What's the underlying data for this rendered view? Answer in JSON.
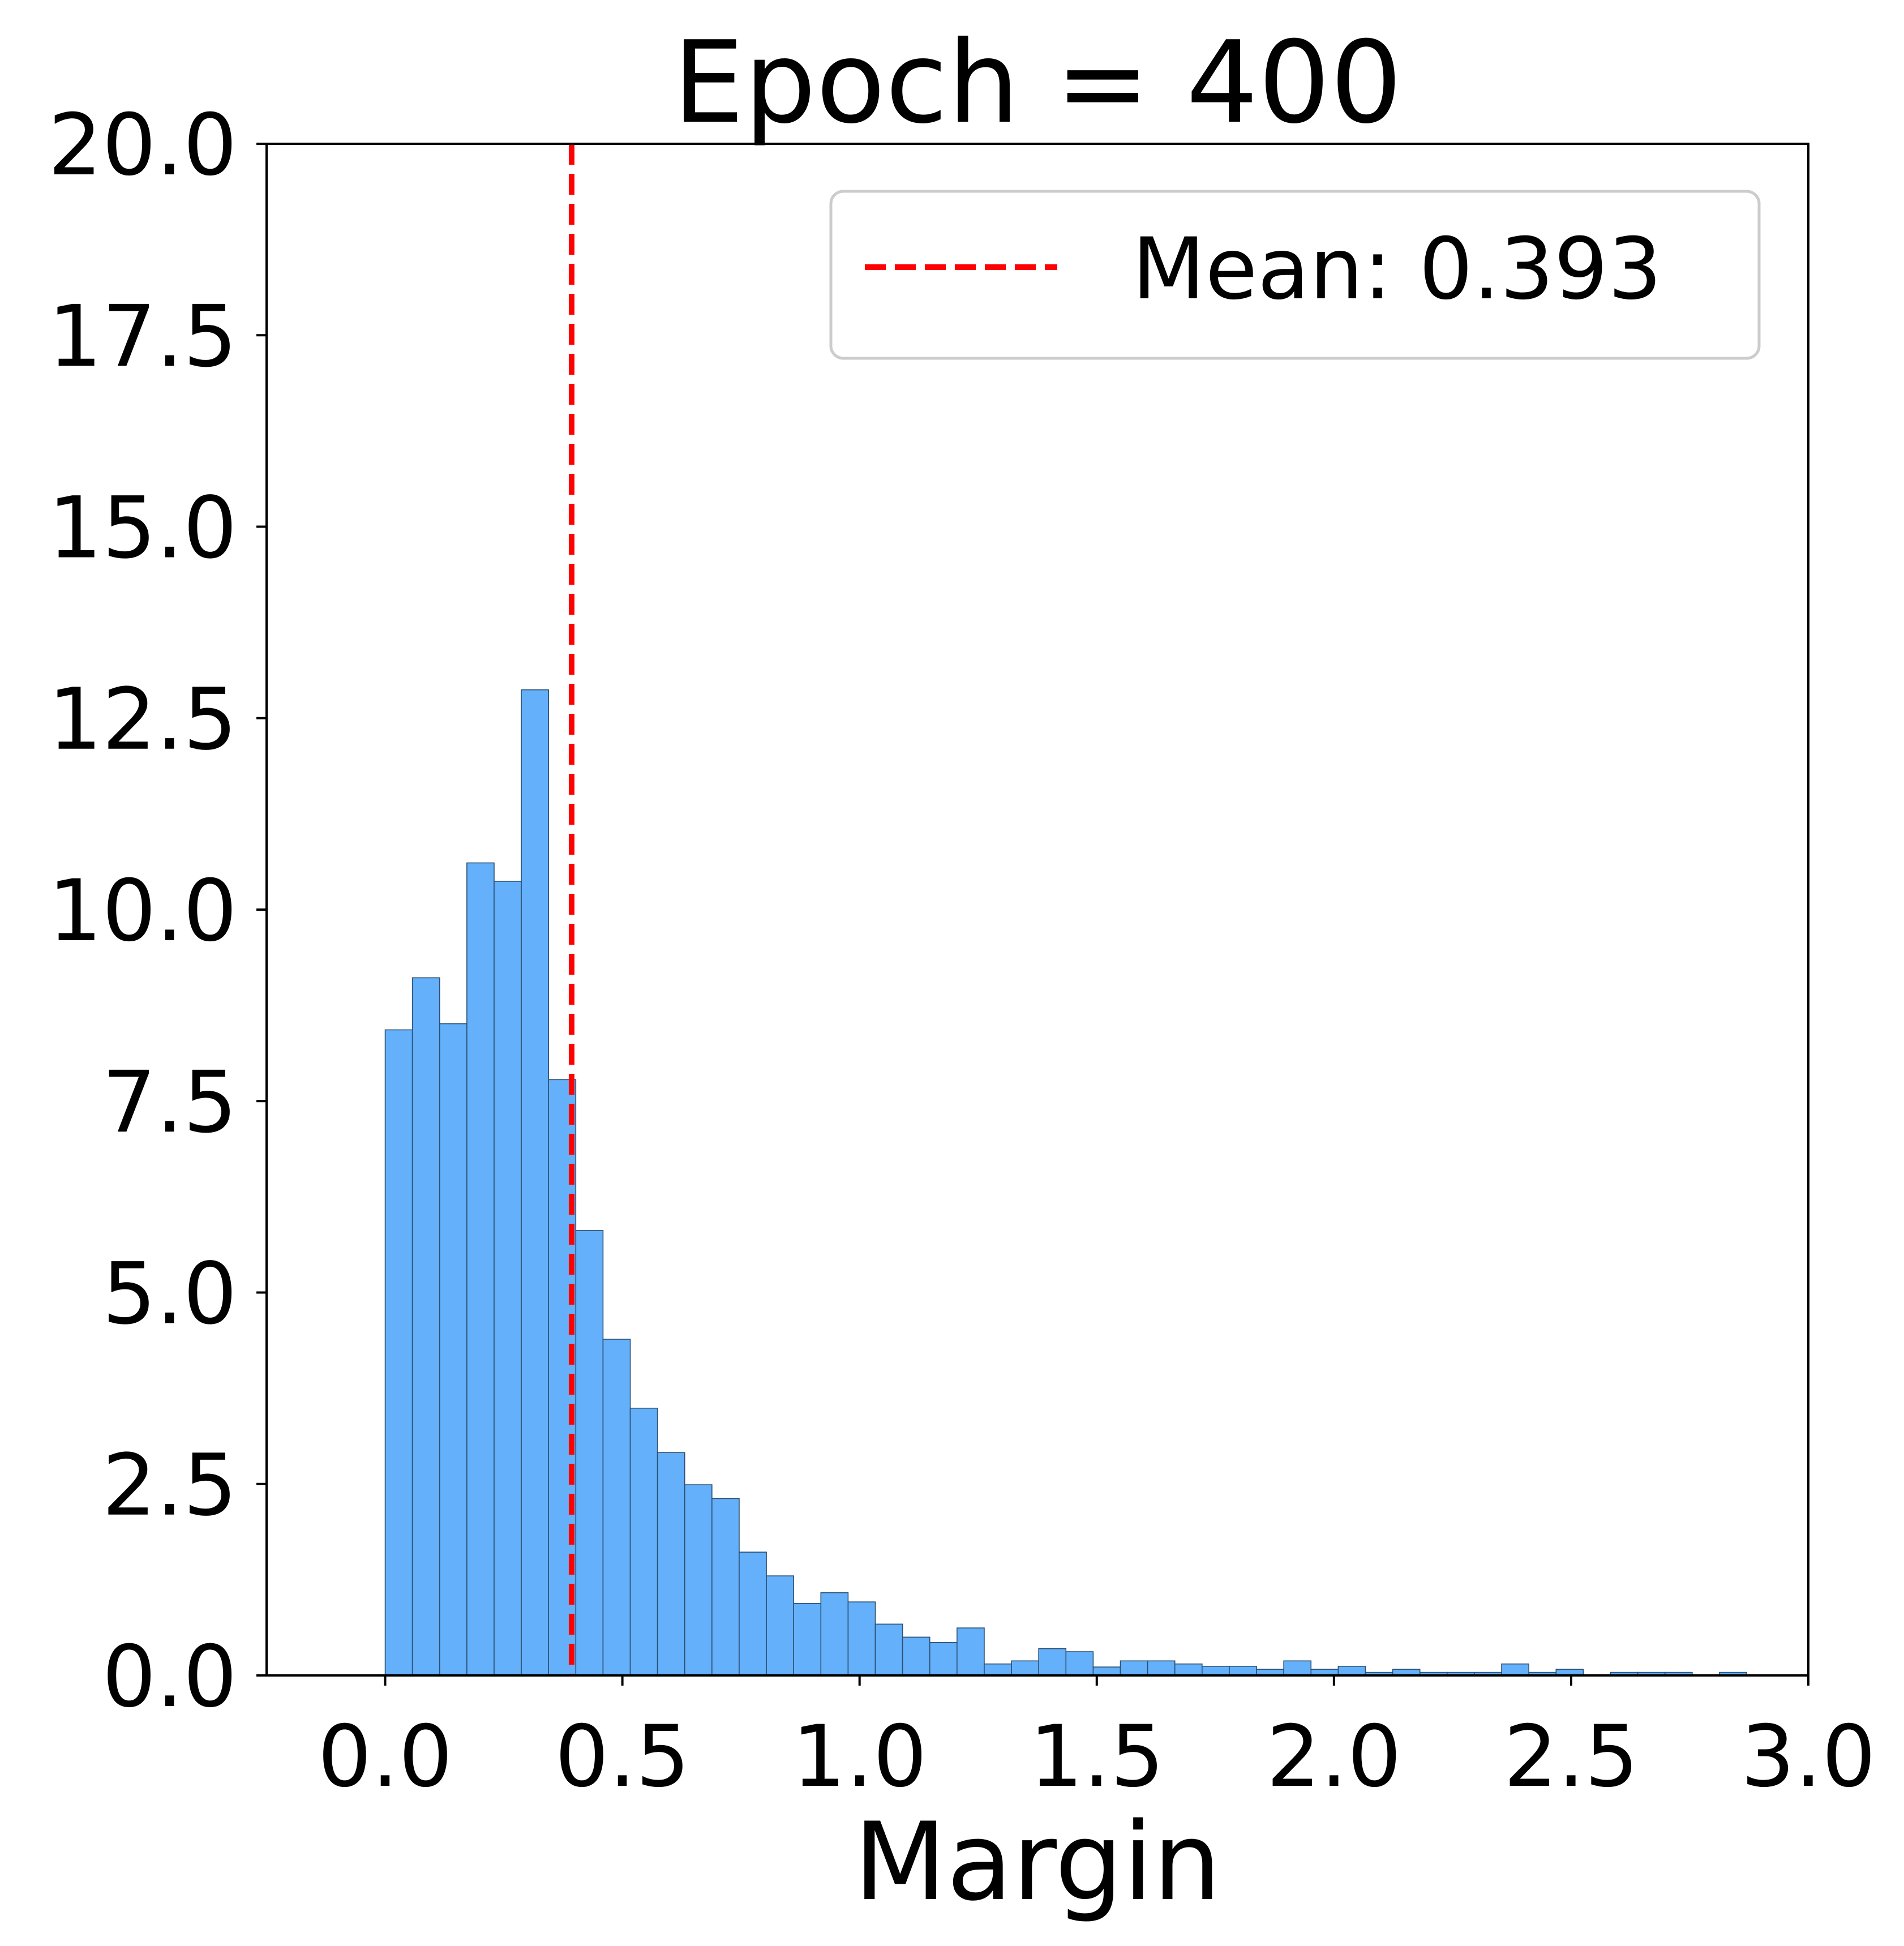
{
  "chart_data": {
    "type": "bar",
    "title": "Epoch = 400",
    "xlabel": "Margin",
    "ylabel": "",
    "xlim": [
      -0.25,
      3.0
    ],
    "ylim": [
      0,
      20
    ],
    "x_ticks": [
      "0.0",
      "0.5",
      "1.0",
      "1.5",
      "2.0",
      "2.5",
      "3.0"
    ],
    "y_ticks": [
      "0.0",
      "2.5",
      "5.0",
      "7.5",
      "10.0",
      "12.5",
      "15.0",
      "17.5",
      "20.0"
    ],
    "grid": false,
    "bin_start": 0.0,
    "bin_width": 0.0574,
    "values": [
      8.43,
      9.11,
      8.51,
      10.61,
      10.37,
      12.87,
      7.78,
      5.81,
      4.39,
      3.49,
      2.91,
      2.49,
      2.31,
      1.61,
      1.3,
      0.94,
      1.08,
      0.96,
      0.67,
      0.5,
      0.43,
      0.62,
      0.15,
      0.19,
      0.35,
      0.31,
      0.11,
      0.19,
      0.19,
      0.15,
      0.12,
      0.12,
      0.08,
      0.19,
      0.08,
      0.12,
      0.04,
      0.08,
      0.04,
      0.04,
      0.04,
      0.15,
      0.04,
      0.08,
      0.0,
      0.04,
      0.04,
      0.04,
      0.0,
      0.04
    ],
    "bar_color": "#64b0fa",
    "bar_edge_color": "#2c4f72",
    "mean_line": {
      "x": 0.393,
      "color": "#ff0000",
      "style": "dashed"
    },
    "legend": {
      "position": "top-right",
      "entries": [
        {
          "label": "Mean: 0.393",
          "color": "#ff0000",
          "style": "dashed"
        }
      ]
    }
  }
}
